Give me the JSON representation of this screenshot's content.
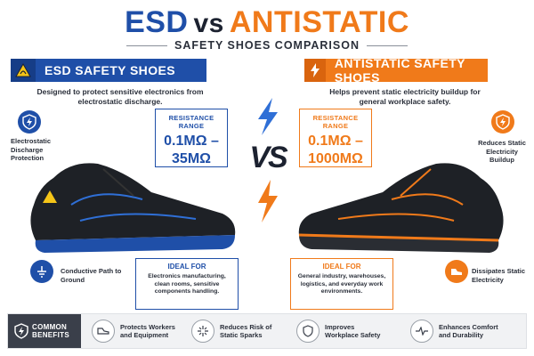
{
  "title": {
    "esd": "ESD",
    "vs": "vs",
    "antistatic": "ANTISTATIC",
    "subtitle": "SAFETY SHOES COMPARISON"
  },
  "colors": {
    "esd_blue": "#1f4fa8",
    "antistatic_orange": "#f07a1a",
    "dark": "#1c2230"
  },
  "left": {
    "header": "ESD SAFETY SHOES",
    "description": "Designed to protect sensitive electronics from electrostatic discharge.",
    "resistance_label": "RESISTANCE RANGE",
    "resistance_value": "0.1MΩ –\n35MΩ",
    "feature_top": "Electrostatic Discharge Protection",
    "feature_bottom": "Conductive Path to Ground",
    "ideal_label": "IDEAL FOR",
    "ideal_text": "Electronics manufacturing, clean rooms, sensitive components handling."
  },
  "right": {
    "header": "ANTISTATIC SAFETY SHOES",
    "description": "Helps prevent static electricity buildup for general workplace safety.",
    "resistance_label": "RESISTANCE RANGE",
    "resistance_value": "0.1MΩ –\n1000MΩ",
    "feature_top": "Reduces Static Electricity Buildup",
    "feature_bottom": "Dissipates Static Electricity",
    "ideal_label": "IDEAL FOR",
    "ideal_text": "General industry, warehouses, logistics, and everyday work environments."
  },
  "vs_label": "VS",
  "benefits": {
    "heading": "COMMON BENEFITS",
    "items": [
      {
        "label": "Protects Workers and Equipment",
        "icon": "shoe-icon"
      },
      {
        "label": "Reduces Risk of Static Sparks",
        "icon": "spark-icon"
      },
      {
        "label": "Improves Workplace Safety",
        "icon": "shield-icon"
      },
      {
        "label": "Enhances Comfort and Durability",
        "icon": "pulse-icon"
      }
    ]
  }
}
